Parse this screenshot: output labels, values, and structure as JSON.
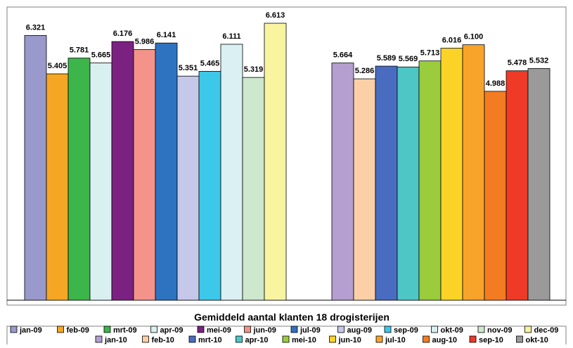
{
  "chart_data": {
    "type": "bar",
    "title": "Gemiddeld aantal klanten 18 drogisterijen",
    "xlabel": "",
    "ylabel": "",
    "ylim": [
      0,
      7.0
    ],
    "grid": false,
    "legend_position": "bottom",
    "groups": [
      {
        "series": [
          {
            "name": "jan-09",
            "value": 6.321,
            "label": "6.321",
            "color": "#9999cc"
          },
          {
            "name": "feb-09",
            "value": 5.405,
            "label": "5.405",
            "color": "#f5a623"
          },
          {
            "name": "mrt-09",
            "value": 5.781,
            "label": "5.781",
            "color": "#3cb54a"
          },
          {
            "name": "apr-09",
            "value": 5.665,
            "label": "5.665",
            "color": "#d9f0f0"
          },
          {
            "name": "mei-09",
            "value": 6.176,
            "label": "6.176",
            "color": "#7b2182"
          },
          {
            "name": "jun-09",
            "value": 5.986,
            "label": "5.986",
            "color": "#f4938a"
          },
          {
            "name": "jul-09",
            "value": 6.141,
            "label": "6.141",
            "color": "#2d73c0"
          },
          {
            "name": "aug-09",
            "value": 5.351,
            "label": "5.351",
            "color": "#c5c8e8"
          },
          {
            "name": "sep-09",
            "value": 5.465,
            "label": "5.465",
            "color": "#3cc8e8"
          },
          {
            "name": "okt-09",
            "value": 6.111,
            "label": "6.111",
            "color": "#daf0f2"
          },
          {
            "name": "nov-09",
            "value": 5.319,
            "label": "5.319",
            "color": "#cde8cd"
          },
          {
            "name": "dec-09",
            "value": 6.613,
            "label": "6.613",
            "color": "#f8f4a0"
          }
        ]
      },
      {
        "series": [
          {
            "name": "jan-10",
            "value": 5.664,
            "label": "5.664",
            "color": "#b49fd0"
          },
          {
            "name": "feb-10",
            "value": 5.286,
            "label": "5.286",
            "color": "#fbd0a6"
          },
          {
            "name": "mrt-10",
            "value": 5.589,
            "label": "5.589",
            "color": "#4a6cc0"
          },
          {
            "name": "apr-10",
            "value": 5.569,
            "label": "5.569",
            "color": "#4ec6c6"
          },
          {
            "name": "mei-10",
            "value": 5.713,
            "label": "5.713",
            "color": "#9acc3c"
          },
          {
            "name": "jun-10",
            "value": 6.016,
            "label": "6.016",
            "color": "#fbd326"
          },
          {
            "name": "jul-10",
            "value": 6.1,
            "label": "6.100",
            "color": "#f8a32a"
          },
          {
            "name": "aug-10",
            "value": 4.988,
            "label": "4.988",
            "color": "#f37c22"
          },
          {
            "name": "sep-10",
            "value": 5.478,
            "label": "5.478",
            "color": "#ee3a26"
          },
          {
            "name": "okt-10",
            "value": 5.532,
            "label": "5.532",
            "color": "#9a9a9a"
          }
        ]
      }
    ],
    "legend": {
      "row1": [
        "jan-09",
        "feb-09",
        "mrt-09",
        "apr-09",
        "mei-09",
        "jun-09",
        "jul-09",
        "aug-09",
        "sep-09",
        "okt-09",
        "nov-09",
        "dec-09"
      ],
      "row2": [
        "jan-10",
        "feb-10",
        "mrt-10",
        "apr-10",
        "mei-10",
        "jun-10",
        "jul-10",
        "aug-10",
        "sep-10",
        "okt-10"
      ]
    }
  }
}
